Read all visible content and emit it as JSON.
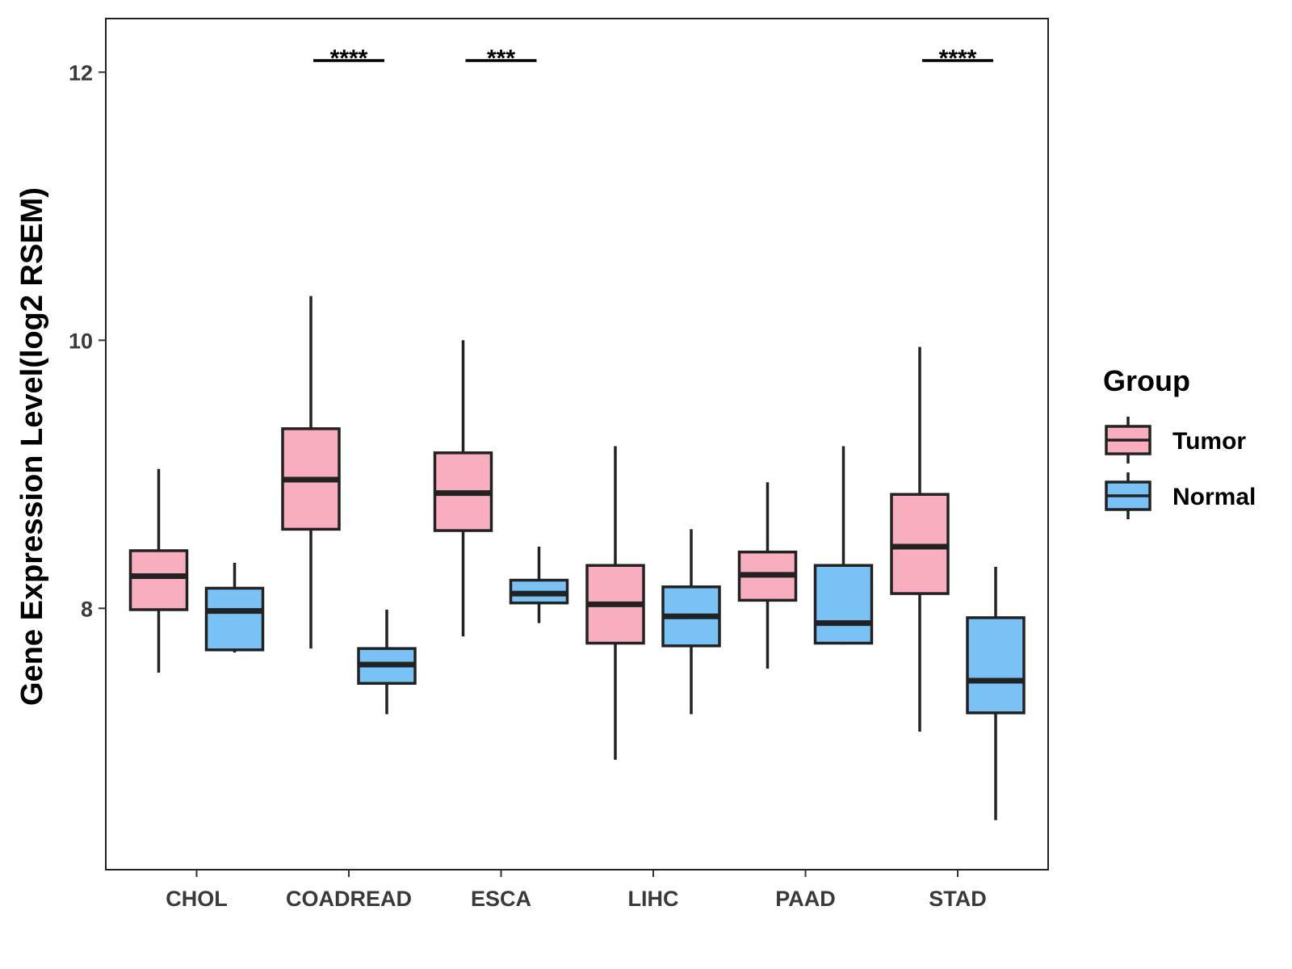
{
  "chart_data": {
    "type": "boxplot",
    "title": "",
    "xlabel": "",
    "ylabel": "Gene Expression Level(log2 RSEM)",
    "ylim": [
      6.05,
      12.4
    ],
    "yticks": [
      8,
      10,
      12
    ],
    "grid": false,
    "categories": [
      "CHOL",
      "COADREAD",
      "ESCA",
      "LIHC",
      "PAAD",
      "STAD"
    ],
    "series": [
      {
        "name": "Tumor",
        "color": "#F9AEBF",
        "boxes": [
          {
            "min": 7.52,
            "q1": 7.99,
            "median": 8.24,
            "q3": 8.43,
            "max": 9.04
          },
          {
            "min": 7.7,
            "q1": 8.59,
            "median": 8.96,
            "q3": 9.34,
            "max": 10.33
          },
          {
            "min": 7.79,
            "q1": 8.58,
            "median": 8.86,
            "q3": 9.16,
            "max": 10.0
          },
          {
            "min": 6.87,
            "q1": 7.74,
            "median": 8.03,
            "q3": 8.32,
            "max": 9.21
          },
          {
            "min": 7.55,
            "q1": 8.06,
            "median": 8.25,
            "q3": 8.42,
            "max": 8.94
          },
          {
            "min": 7.08,
            "q1": 8.11,
            "median": 8.46,
            "q3": 8.85,
            "max": 9.95
          }
        ]
      },
      {
        "name": "Normal",
        "color": "#79C2F6",
        "boxes": [
          {
            "min": 7.67,
            "q1": 7.69,
            "median": 7.98,
            "q3": 8.15,
            "max": 8.34
          },
          {
            "min": 7.21,
            "q1": 7.44,
            "median": 7.58,
            "q3": 7.7,
            "max": 7.99
          },
          {
            "min": 7.89,
            "q1": 8.04,
            "median": 8.11,
            "q3": 8.21,
            "max": 8.46
          },
          {
            "min": 7.21,
            "q1": 7.72,
            "median": 7.94,
            "q3": 8.16,
            "max": 8.59
          },
          {
            "min": 7.73,
            "q1": 7.74,
            "median": 7.89,
            "q3": 8.32,
            "max": 9.21
          },
          {
            "min": 6.42,
            "q1": 7.22,
            "median": 7.46,
            "q3": 7.93,
            "max": 8.31
          }
        ]
      }
    ],
    "significance": [
      {
        "category": "CHOL",
        "label": ""
      },
      {
        "category": "COADREAD",
        "label": "****"
      },
      {
        "category": "ESCA",
        "label": "***"
      },
      {
        "category": "LIHC",
        "label": ""
      },
      {
        "category": "PAAD",
        "label": ""
      },
      {
        "category": "STAD",
        "label": "****"
      }
    ],
    "legend": {
      "title": "Group",
      "entries": [
        "Tumor",
        "Normal"
      ],
      "placement": "right"
    }
  }
}
